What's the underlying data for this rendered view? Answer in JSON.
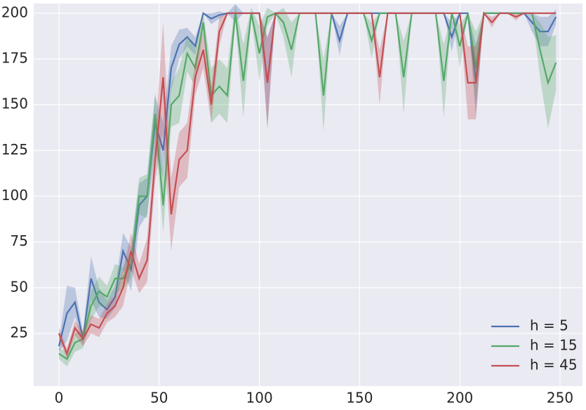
{
  "chart_data": {
    "type": "line",
    "x": [
      0,
      4,
      8,
      12,
      16,
      20,
      24,
      28,
      32,
      36,
      40,
      44,
      48,
      52,
      56,
      60,
      64,
      68,
      72,
      76,
      80,
      84,
      88,
      92,
      96,
      100,
      104,
      108,
      112,
      116,
      120,
      124,
      128,
      132,
      136,
      140,
      144,
      148,
      152,
      156,
      160,
      164,
      168,
      172,
      176,
      180,
      184,
      188,
      192,
      196,
      200,
      204,
      208,
      212,
      216,
      220,
      224,
      228,
      232,
      236,
      240,
      244,
      248
    ],
    "series": [
      {
        "name": "h = 5",
        "color": "#4c72b0",
        "values": [
          18,
          36,
          42,
          22,
          55,
          42,
          38,
          45,
          70,
          60,
          95,
          100,
          140,
          125,
          170,
          183,
          187,
          182,
          200,
          197,
          199,
          200,
          200,
          200,
          200,
          200,
          162,
          200,
          200,
          200,
          200,
          200,
          200,
          200,
          200,
          185,
          200,
          200,
          200,
          200,
          200,
          200,
          200,
          200,
          200,
          200,
          200,
          200,
          200,
          187,
          200,
          200,
          163,
          200,
          200,
          200,
          200,
          200,
          200,
          195,
          190,
          190,
          198
        ],
        "errors": [
          3,
          15,
          8,
          4,
          12,
          8,
          5,
          6,
          10,
          12,
          12,
          10,
          15,
          15,
          12,
          8,
          5,
          5,
          0,
          3,
          2,
          0,
          5,
          0,
          0,
          0,
          25,
          0,
          0,
          0,
          0,
          0,
          0,
          0,
          0,
          8,
          0,
          0,
          0,
          0,
          0,
          0,
          0,
          0,
          0,
          0,
          0,
          0,
          0,
          8,
          0,
          0,
          20,
          0,
          0,
          0,
          0,
          0,
          0,
          5,
          8,
          8,
          4
        ]
      },
      {
        "name": "h = 15",
        "color": "#55a868",
        "values": [
          14,
          11,
          20,
          22,
          40,
          48,
          45,
          55,
          55,
          63,
          100,
          100,
          145,
          95,
          150,
          155,
          178,
          170,
          195,
          155,
          160,
          155,
          200,
          163,
          200,
          178,
          198,
          200,
          195,
          180,
          200,
          200,
          200,
          155,
          200,
          200,
          200,
          200,
          200,
          185,
          200,
          200,
          200,
          165,
          200,
          200,
          200,
          200,
          163,
          200,
          182,
          200,
          170,
          200,
          200,
          200,
          200,
          200,
          200,
          200,
          180,
          162,
          173
        ],
        "errors": [
          3,
          4,
          5,
          5,
          8,
          8,
          6,
          8,
          6,
          8,
          10,
          12,
          12,
          15,
          12,
          15,
          10,
          10,
          5,
          15,
          15,
          15,
          5,
          20,
          3,
          15,
          5,
          0,
          8,
          15,
          0,
          0,
          0,
          20,
          0,
          0,
          0,
          0,
          0,
          10,
          0,
          0,
          0,
          20,
          0,
          0,
          0,
          0,
          20,
          0,
          12,
          0,
          20,
          0,
          0,
          0,
          0,
          0,
          0,
          0,
          15,
          25,
          15
        ]
      },
      {
        "name": "h = 45",
        "color": "#c44e52",
        "values": [
          25,
          14,
          28,
          22,
          30,
          28,
          36,
          40,
          50,
          70,
          55,
          65,
          120,
          165,
          90,
          120,
          125,
          165,
          180,
          150,
          190,
          200,
          200,
          200,
          200,
          200,
          162,
          200,
          200,
          200,
          200,
          200,
          200,
          200,
          200,
          200,
          200,
          200,
          200,
          200,
          165,
          200,
          200,
          200,
          200,
          200,
          200,
          200,
          200,
          200,
          200,
          162,
          162,
          200,
          195,
          200,
          200,
          198,
          200,
          200,
          200,
          200,
          200
        ],
        "errors": [
          3,
          3,
          4,
          4,
          5,
          5,
          5,
          6,
          10,
          10,
          8,
          12,
          12,
          30,
          20,
          15,
          15,
          10,
          10,
          10,
          8,
          0,
          0,
          0,
          0,
          0,
          25,
          0,
          0,
          0,
          0,
          0,
          0,
          0,
          0,
          0,
          0,
          0,
          0,
          0,
          15,
          0,
          0,
          0,
          0,
          0,
          0,
          0,
          0,
          0,
          0,
          20,
          20,
          0,
          3,
          0,
          0,
          2,
          0,
          0,
          0,
          0,
          0
        ]
      }
    ],
    "xlim": [
      -12.6,
      261.2
    ],
    "ylim": [
      -3.8,
      205.3
    ],
    "xticks": [
      0,
      50,
      100,
      150,
      200,
      250
    ],
    "yticks": [
      25,
      50,
      75,
      100,
      125,
      150,
      175,
      200
    ],
    "grid": true,
    "legend": "lower right"
  }
}
